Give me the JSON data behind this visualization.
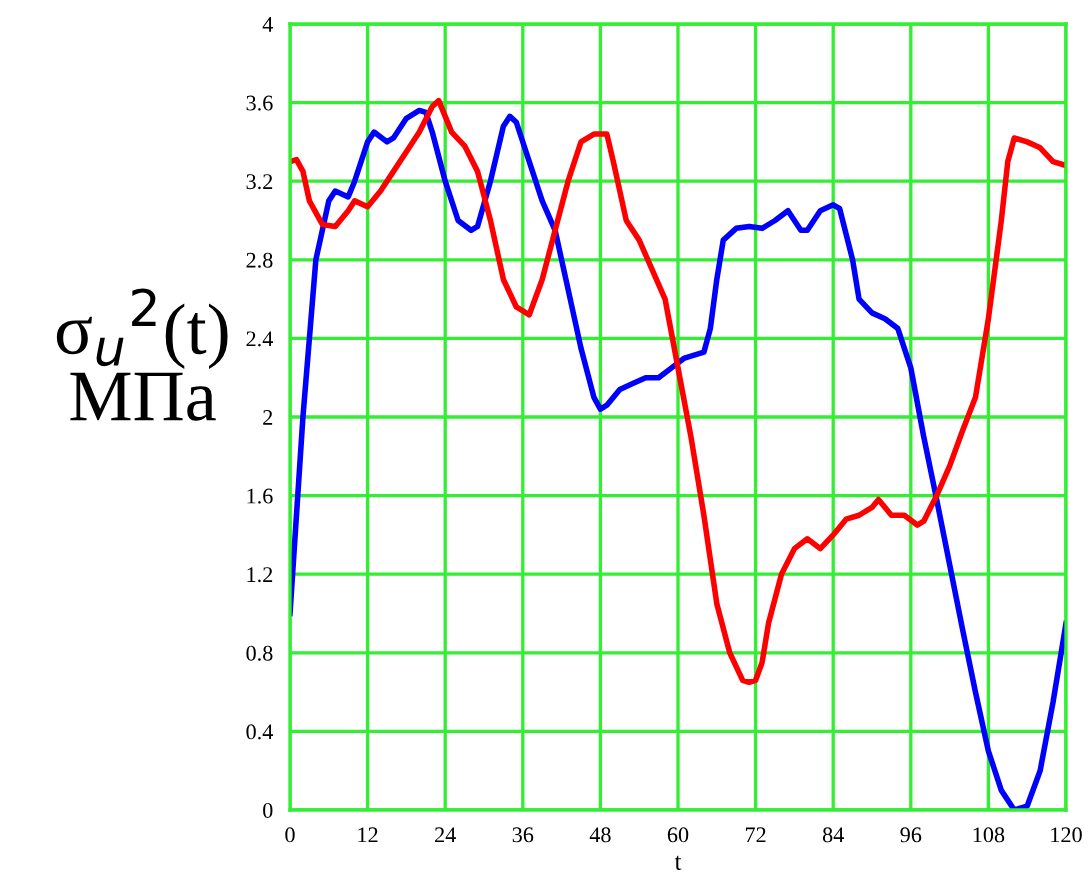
{
  "chart_data": {
    "type": "line",
    "xlabel": "t",
    "ylabel": "σ$_{u}$$^{2}$(t)\nМПа",
    "xlim": [
      0,
      120
    ],
    "xticks": [
      0,
      12,
      24,
      36,
      48,
      60,
      72,
      84,
      96,
      108,
      120
    ],
    "ylim": [
      0,
      4
    ],
    "yticks": [
      0,
      0.4,
      0.8,
      1.2,
      1.6,
      2,
      2.4,
      2.8,
      3.2,
      3.6,
      4
    ],
    "grid": true,
    "marker": "none",
    "line_style": "solid",
    "series": [
      {
        "color": "#0000ff",
        "x": [
          0,
          2,
          4,
          6,
          7,
          9,
          10,
          12,
          13,
          15,
          16,
          18,
          20,
          21,
          22,
          24,
          26,
          28,
          29,
          31,
          33,
          34,
          35,
          37,
          39,
          41,
          43,
          45,
          47,
          48,
          49,
          51,
          53,
          55,
          57,
          59,
          61,
          63,
          64,
          65,
          66,
          67,
          69,
          71,
          73,
          75,
          77,
          79,
          80,
          82,
          84,
          85,
          87,
          88,
          90,
          92,
          94,
          96,
          98,
          100,
          102,
          104,
          106,
          108,
          110,
          112,
          114,
          116,
          118,
          120
        ],
        "values": [
          1.0,
          2.0,
          2.8,
          3.1,
          3.15,
          3.12,
          3.2,
          3.4,
          3.45,
          3.4,
          3.42,
          3.52,
          3.56,
          3.55,
          3.45,
          3.2,
          3.0,
          2.95,
          2.97,
          3.2,
          3.48,
          3.53,
          3.5,
          3.3,
          3.1,
          2.95,
          2.65,
          2.35,
          2.1,
          2.04,
          2.06,
          2.14,
          2.17,
          2.2,
          2.2,
          2.25,
          2.3,
          2.32,
          2.33,
          2.45,
          2.7,
          2.9,
          2.96,
          2.97,
          2.96,
          3.0,
          3.05,
          2.95,
          2.95,
          3.05,
          3.08,
          3.06,
          2.8,
          2.6,
          2.53,
          2.5,
          2.45,
          2.25,
          1.9,
          1.58,
          1.25,
          0.92,
          0.6,
          0.3,
          0.1,
          0.0,
          0.02,
          0.2,
          0.55,
          0.95
        ]
      },
      {
        "color": "#ff0000",
        "x": [
          0,
          1,
          2,
          3,
          5,
          7,
          9,
          10,
          12,
          14,
          16,
          18,
          20,
          22,
          23,
          25,
          27,
          29,
          31,
          33,
          35,
          37,
          39,
          41,
          43,
          45,
          47,
          49,
          50,
          52,
          54,
          56,
          58,
          60,
          62,
          64,
          66,
          68,
          70,
          71,
          72,
          73,
          74,
          76,
          78,
          80,
          82,
          84,
          86,
          88,
          90,
          91,
          93,
          95,
          97,
          98,
          100,
          102,
          104,
          106,
          108,
          110,
          111,
          112,
          114,
          116,
          118,
          120
        ],
        "values": [
          3.3,
          3.31,
          3.25,
          3.1,
          2.98,
          2.97,
          3.05,
          3.1,
          3.07,
          3.15,
          3.25,
          3.35,
          3.45,
          3.58,
          3.61,
          3.45,
          3.38,
          3.25,
          3.0,
          2.7,
          2.56,
          2.52,
          2.7,
          2.95,
          3.2,
          3.4,
          3.44,
          3.44,
          3.3,
          3.0,
          2.9,
          2.75,
          2.6,
          2.25,
          1.9,
          1.5,
          1.05,
          0.8,
          0.66,
          0.65,
          0.66,
          0.75,
          0.95,
          1.2,
          1.33,
          1.38,
          1.33,
          1.4,
          1.48,
          1.5,
          1.54,
          1.58,
          1.5,
          1.5,
          1.45,
          1.47,
          1.6,
          1.75,
          1.93,
          2.1,
          2.5,
          3.0,
          3.3,
          3.42,
          3.4,
          3.37,
          3.3,
          3.28
        ]
      }
    ]
  }
}
